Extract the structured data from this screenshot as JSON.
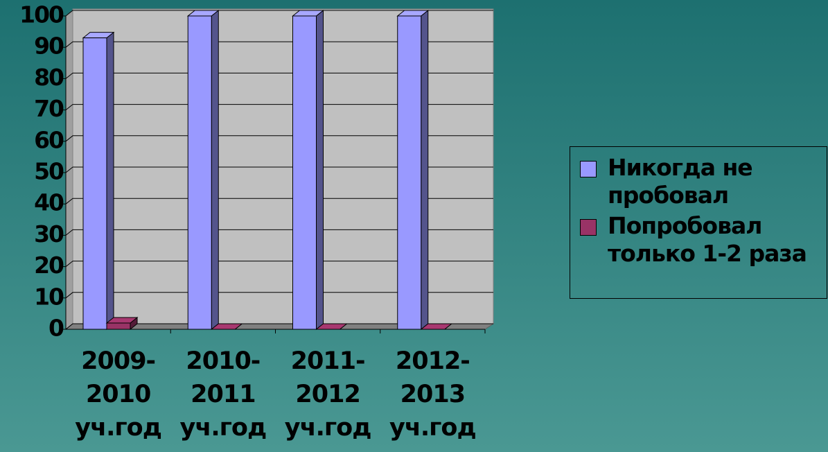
{
  "chart_data": {
    "type": "bar3d",
    "categories": [
      "2009-2010 уч.год",
      "2010-2011 уч.год",
      "2011-2012 уч.год",
      "2012-2013 уч.год"
    ],
    "series": [
      {
        "name": "Никогда не пробовал",
        "color": "#9999ff",
        "values": [
          93,
          100,
          100,
          100
        ]
      },
      {
        "name": "Попробовал только 1-2 раза",
        "color": "#993366",
        "values": [
          2,
          0,
          0,
          0
        ]
      }
    ],
    "ylim": [
      0,
      100
    ],
    "yticks": [
      0,
      10,
      20,
      30,
      40,
      50,
      60,
      70,
      80,
      90,
      100
    ],
    "grid": true,
    "legend": "right"
  }
}
